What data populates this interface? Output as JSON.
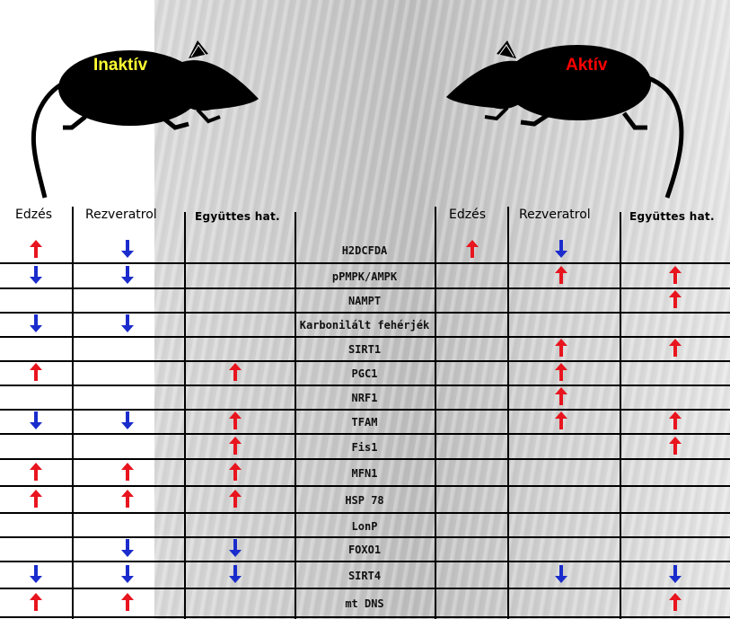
{
  "labels": {
    "inactive": "Inaktív",
    "active": "Aktív"
  },
  "headers": {
    "left": [
      "Edzés",
      "Rezveratrol",
      "Együttes hat."
    ],
    "right": [
      "Edzés",
      "Rezveratrol",
      "Együttes hat."
    ]
  },
  "colors": {
    "up": "#e8141e",
    "down": "#1a2ccc",
    "inactive_label": "#ffff33",
    "active_label": "#ff0000"
  },
  "rows": [
    {
      "gene": "H2DCFDA",
      "left": [
        "up",
        "down",
        ""
      ],
      "right": [
        "up",
        "down",
        ""
      ]
    },
    {
      "gene": "pPMPK/AMPK",
      "left": [
        "down",
        "down",
        ""
      ],
      "right": [
        "",
        "up",
        "up"
      ]
    },
    {
      "gene": "NAMPT",
      "left": [
        "",
        "",
        ""
      ],
      "right": [
        "",
        "",
        "up"
      ]
    },
    {
      "gene": "Karbonilált fehérjék",
      "left": [
        "down",
        "down",
        ""
      ],
      "right": [
        "",
        "",
        ""
      ]
    },
    {
      "gene": "SIRT1",
      "left": [
        "",
        "",
        ""
      ],
      "right": [
        "",
        "up",
        "up"
      ]
    },
    {
      "gene": "PGC1",
      "left": [
        "up",
        "",
        "up"
      ],
      "right": [
        "",
        "up",
        ""
      ]
    },
    {
      "gene": "NRF1",
      "left": [
        "",
        "",
        ""
      ],
      "right": [
        "",
        "up",
        ""
      ]
    },
    {
      "gene": "TFAM",
      "left": [
        "down",
        "down",
        "up"
      ],
      "right": [
        "",
        "up",
        "up"
      ]
    },
    {
      "gene": "Fis1",
      "left": [
        "",
        "",
        "up"
      ],
      "right": [
        "",
        "",
        "up"
      ]
    },
    {
      "gene": "MFN1",
      "left": [
        "up",
        "up",
        "up"
      ],
      "right": [
        "",
        "",
        ""
      ]
    },
    {
      "gene": "HSP 78",
      "left": [
        "up",
        "up",
        "up"
      ],
      "right": [
        "",
        "",
        ""
      ]
    },
    {
      "gene": "LonP",
      "left": [
        "",
        "",
        ""
      ],
      "right": [
        "",
        "",
        ""
      ]
    },
    {
      "gene": "FOXO1",
      "left": [
        "",
        "down",
        "down"
      ],
      "right": [
        "",
        "",
        ""
      ]
    },
    {
      "gene": "SIRT4",
      "left": [
        "down",
        "down",
        "down"
      ],
      "right": [
        "",
        "down",
        "down"
      ]
    },
    {
      "gene": "mt DNS",
      "left": [
        "up",
        "up",
        ""
      ],
      "right": [
        "",
        "",
        "up"
      ]
    }
  ]
}
